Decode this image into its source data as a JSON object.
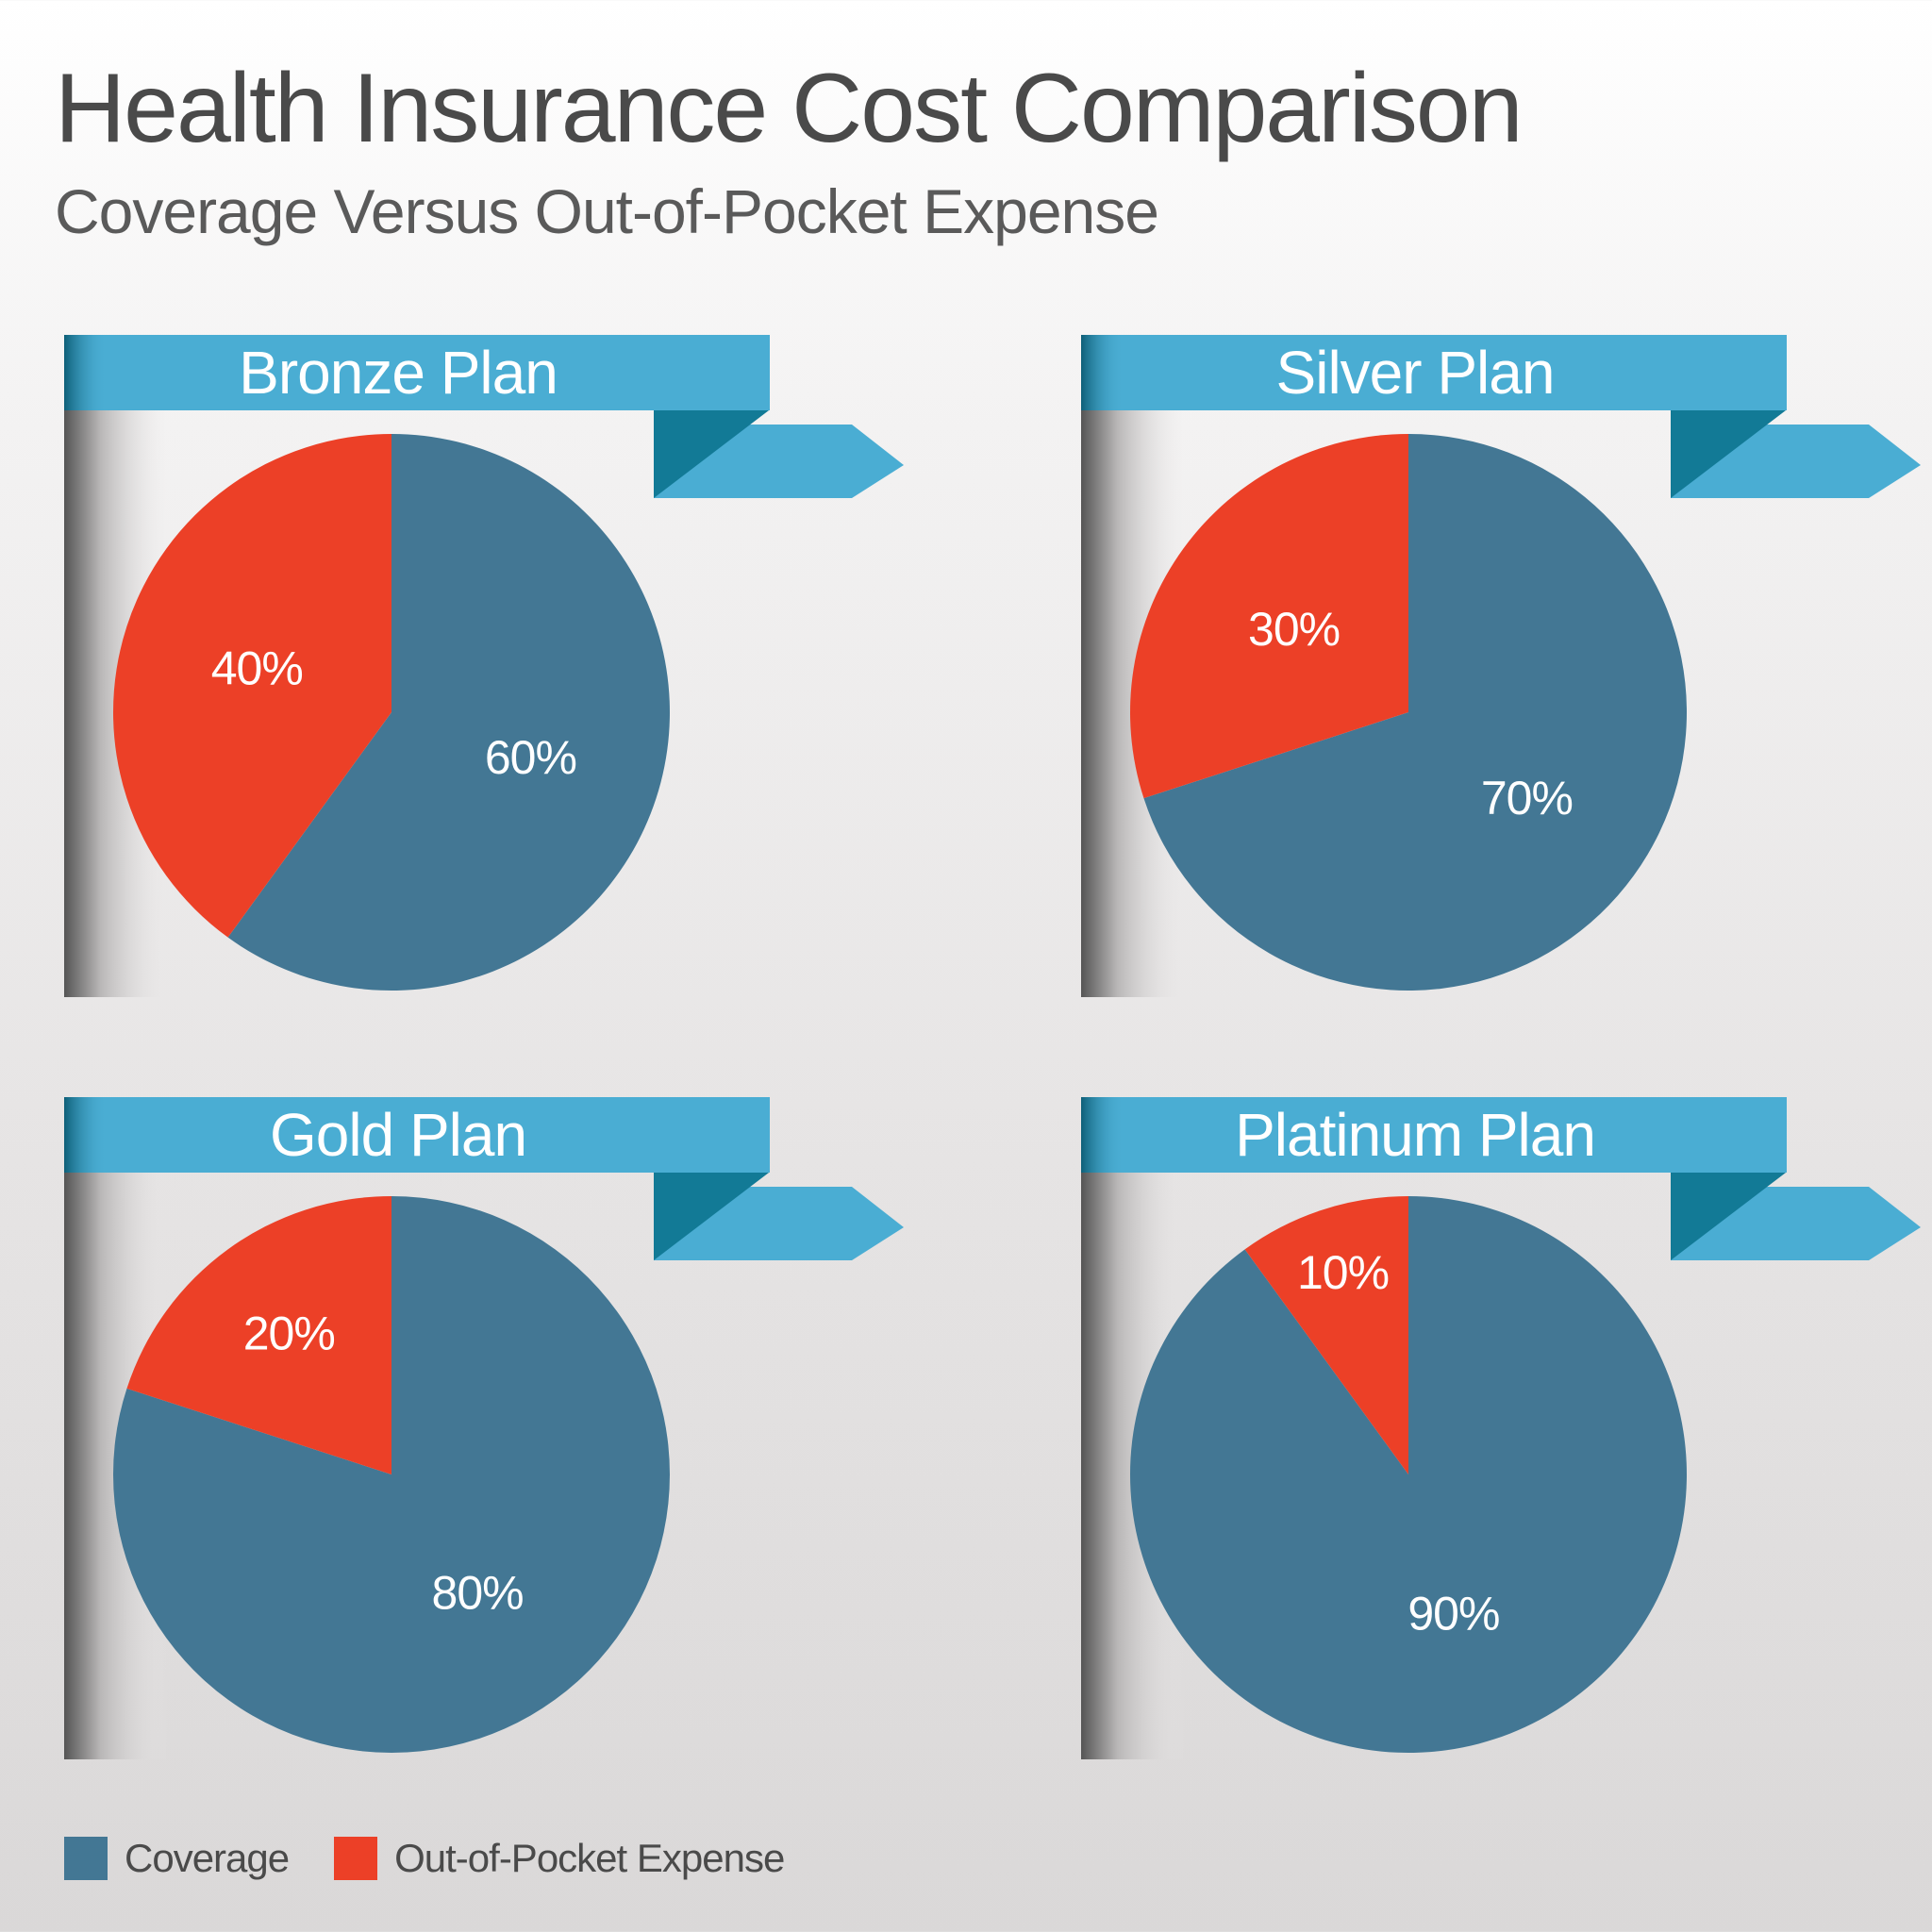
{
  "title": "Health Insurance Cost Comparison",
  "subtitle": "Coverage Versus Out-of-Pocket Expense",
  "colors": {
    "coverage": "#437794",
    "out_of_pocket": "#ec4027",
    "banner": "#4aadd3",
    "banner_dark": "#127a96"
  },
  "legend": [
    {
      "label": "Coverage",
      "color": "#437794"
    },
    {
      "label": "Out-of-Pocket Expense",
      "color": "#ec4027"
    }
  ],
  "chart_data": [
    {
      "type": "pie",
      "title": "Bronze Plan",
      "slices": [
        {
          "name": "Coverage",
          "value": 60,
          "label": "60%"
        },
        {
          "name": "Out-of-Pocket Expense",
          "value": 40,
          "label": "40%"
        }
      ]
    },
    {
      "type": "pie",
      "title": "Silver Plan",
      "slices": [
        {
          "name": "Coverage",
          "value": 70,
          "label": "70%"
        },
        {
          "name": "Out-of-Pocket Expense",
          "value": 30,
          "label": "30%"
        }
      ]
    },
    {
      "type": "pie",
      "title": "Gold Plan",
      "slices": [
        {
          "name": "Coverage",
          "value": 80,
          "label": "80%"
        },
        {
          "name": "Out-of-Pocket Expense",
          "value": 20,
          "label": "20%"
        }
      ]
    },
    {
      "type": "pie",
      "title": "Platinum Plan",
      "slices": [
        {
          "name": "Coverage",
          "value": 90,
          "label": "90%"
        },
        {
          "name": "Out-of-Pocket Expense",
          "value": 10,
          "label": "10%"
        }
      ]
    }
  ]
}
